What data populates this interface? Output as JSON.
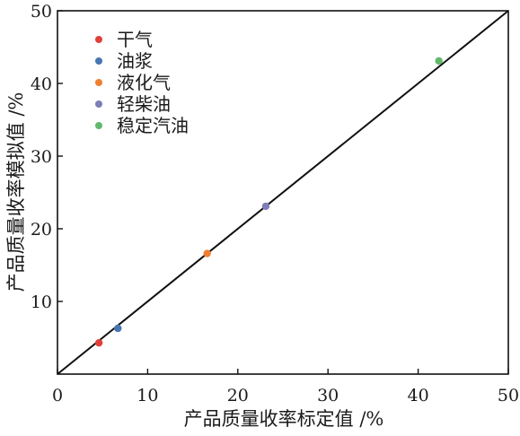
{
  "chart_data": {
    "type": "scatter",
    "title": "",
    "xlabel": "产品质量收率标定值 /%",
    "ylabel": "产品质量收率模拟值 /%",
    "xlim": [
      0,
      50
    ],
    "ylim": [
      0,
      50
    ],
    "xticks": [
      0,
      10,
      20,
      30,
      40,
      50
    ],
    "yticks": [
      10,
      20,
      30,
      40,
      50
    ],
    "grid": false,
    "legend_position": "top-left",
    "reference_line": {
      "from": [
        0,
        0
      ],
      "to": [
        50,
        50
      ],
      "color": "#111111"
    },
    "series": [
      {
        "name": "干气",
        "color": "#e0403a",
        "points": [
          {
            "x": 4.6,
            "y": 4.3
          }
        ]
      },
      {
        "name": "油浆",
        "color": "#4876b0",
        "points": [
          {
            "x": 6.7,
            "y": 6.3
          }
        ]
      },
      {
        "name": "液化气",
        "color": "#ef7f33",
        "points": [
          {
            "x": 16.6,
            "y": 16.6
          }
        ]
      },
      {
        "name": "轻柴油",
        "color": "#7e7db7",
        "points": [
          {
            "x": 23.1,
            "y": 23.1
          }
        ]
      },
      {
        "name": "稳定汽油",
        "color": "#63b86a",
        "points": [
          {
            "x": 42.3,
            "y": 43.1
          }
        ]
      }
    ]
  }
}
